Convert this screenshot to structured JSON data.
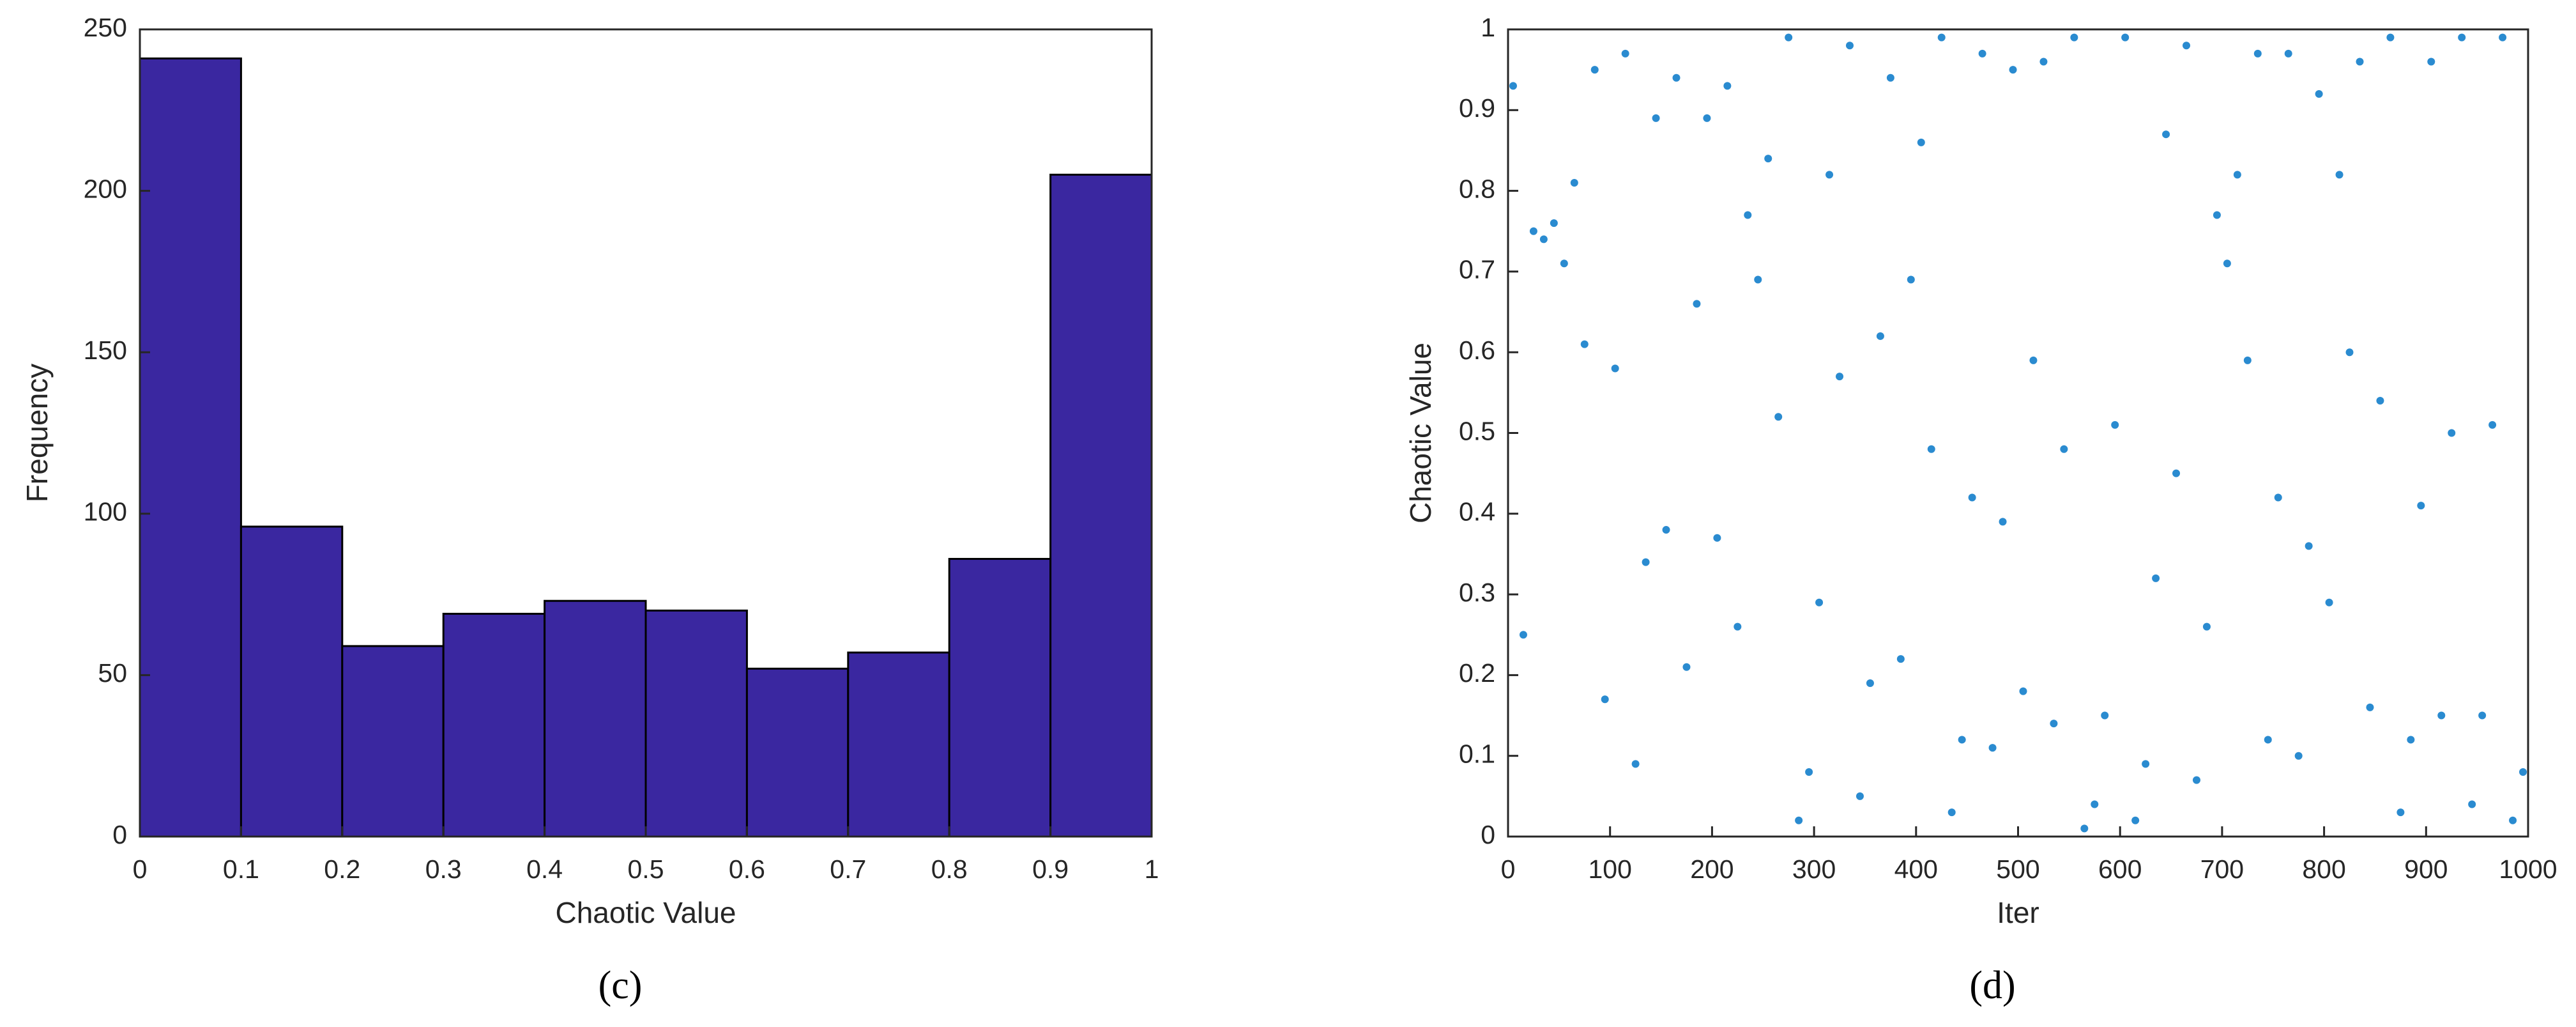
{
  "chart_data": [
    {
      "type": "histogram",
      "caption": "(c)",
      "xlabel": "Chaotic Value",
      "ylabel": "Frequency",
      "bins": [
        0,
        0.1,
        0.2,
        0.3,
        0.4,
        0.5,
        0.6,
        0.7,
        0.8,
        0.9,
        1
      ],
      "values": [
        241,
        96,
        59,
        69,
        73,
        70,
        52,
        57,
        86,
        205
      ],
      "color": "#3a27a0",
      "edgecolor": "#000000",
      "xlim": [
        0,
        1
      ],
      "xticks": [
        0,
        0.1,
        0.2,
        0.3,
        0.4,
        0.5,
        0.6,
        0.7,
        0.8,
        0.9,
        1
      ],
      "ylim": [
        0,
        250
      ],
      "yticks": [
        0,
        50,
        100,
        150,
        200,
        250
      ]
    },
    {
      "type": "scatter",
      "caption": "(d)",
      "xlabel": "Iter",
      "ylabel": "Chaotic Value",
      "color": "#2a8bd0",
      "x": [
        5,
        15,
        25,
        35,
        45,
        55,
        65,
        75,
        85,
        95,
        105,
        115,
        125,
        135,
        145,
        155,
        165,
        175,
        185,
        195,
        205,
        215,
        225,
        235,
        245,
        255,
        265,
        275,
        285,
        295,
        305,
        315,
        325,
        335,
        345,
        355,
        365,
        375,
        385,
        395,
        405,
        415,
        425,
        435,
        445,
        455,
        465,
        475,
        485,
        495,
        505,
        515,
        525,
        535,
        545,
        555,
        565,
        575,
        585,
        595,
        605,
        615,
        625,
        635,
        645,
        655,
        665,
        675,
        685,
        695,
        705,
        715,
        725,
        735,
        745,
        755,
        765,
        775,
        785,
        795,
        805,
        815,
        825,
        835,
        845,
        855,
        865,
        875,
        885,
        895,
        905,
        915,
        925,
        935,
        945,
        955,
        965,
        975,
        985,
        995
      ],
      "y": [
        0.93,
        0.25,
        0.75,
        0.74,
        0.76,
        0.71,
        0.81,
        0.61,
        0.95,
        0.17,
        0.58,
        0.97,
        0.09,
        0.34,
        0.89,
        0.38,
        0.94,
        0.21,
        0.66,
        0.89,
        0.37,
        0.93,
        0.26,
        0.77,
        0.69,
        0.84,
        0.52,
        0.99,
        0.02,
        0.08,
        0.29,
        0.82,
        0.57,
        0.98,
        0.05,
        0.19,
        0.62,
        0.94,
        0.22,
        0.69,
        0.86,
        0.48,
        0.99,
        0.03,
        0.12,
        0.42,
        0.97,
        0.11,
        0.39,
        0.95,
        0.18,
        0.59,
        0.96,
        0.14,
        0.48,
        0.99,
        0.01,
        0.04,
        0.15,
        0.51,
        0.99,
        0.02,
        0.09,
        0.32,
        0.87,
        0.45,
        0.98,
        0.07,
        0.26,
        0.77,
        0.71,
        0.82,
        0.59,
        0.97,
        0.12,
        0.42,
        0.97,
        0.1,
        0.36,
        0.92,
        0.29,
        0.82,
        0.6,
        0.96,
        0.16,
        0.54,
        0.99,
        0.03,
        0.12,
        0.41,
        0.96,
        0.15,
        0.5,
        0.99,
        0.04,
        0.15,
        0.51,
        0.99,
        0.02,
        0.08
      ],
      "xlim": [
        0,
        1000
      ],
      "xticks": [
        0,
        100,
        200,
        300,
        400,
        500,
        600,
        700,
        800,
        900,
        1000
      ],
      "ylim": [
        0,
        1
      ],
      "yticks": [
        0,
        0.1,
        0.2,
        0.3,
        0.4,
        0.5,
        0.6,
        0.7,
        0.8,
        0.9,
        1
      ]
    }
  ]
}
